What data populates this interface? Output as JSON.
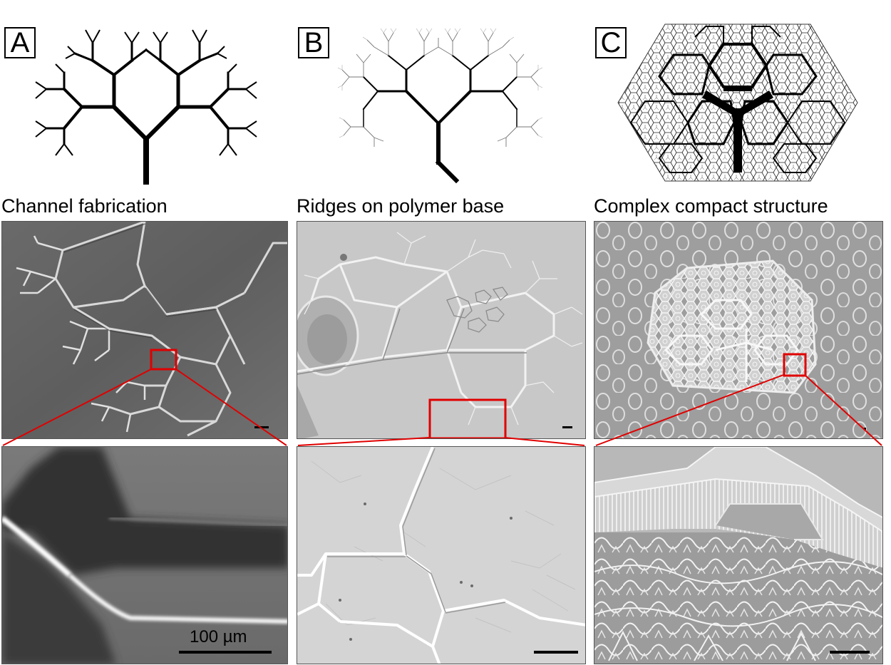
{
  "panels": [
    {
      "label": "A",
      "caption": "Channel fabrication"
    },
    {
      "label": "B",
      "caption": "Ridges on polymer base"
    },
    {
      "label": "C",
      "caption": "Complex compact structure"
    }
  ],
  "scale_bar_label": "100 µm",
  "colors": {
    "highlight_box": "#e00000",
    "drawing": "#000000"
  }
}
